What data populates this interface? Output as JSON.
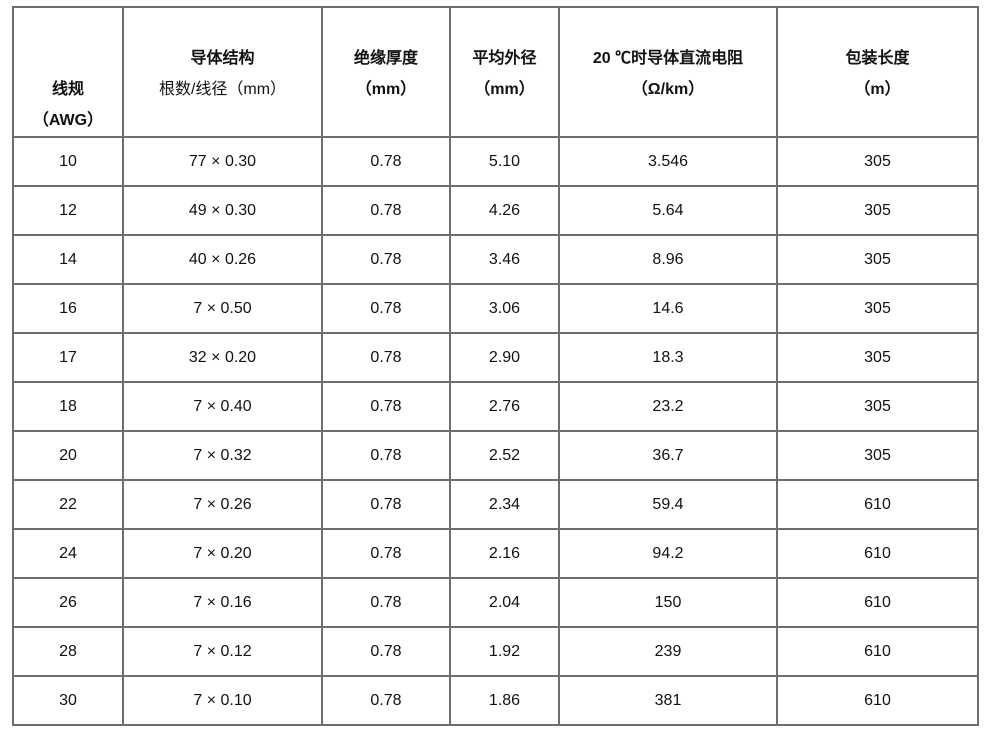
{
  "table": {
    "headers": [
      {
        "lines": [
          "线规",
          "（AWG）"
        ]
      },
      {
        "lines": [
          "导体结构",
          "根数/线径（mm）"
        ]
      },
      {
        "lines": [
          "绝缘厚度",
          "（mm）"
        ]
      },
      {
        "lines": [
          "平均外径",
          "（mm）"
        ]
      },
      {
        "lines": [
          "20 ℃时导体直流电阻",
          "（Ω/km）"
        ]
      },
      {
        "lines": [
          "包装长度",
          "（m）"
        ]
      }
    ],
    "rows": [
      [
        "10",
        "77 × 0.30",
        "0.78",
        "5.10",
        "3.546",
        "305"
      ],
      [
        "12",
        "49 × 0.30",
        "0.78",
        "4.26",
        "5.64",
        "305"
      ],
      [
        "14",
        "40 × 0.26",
        "0.78",
        "3.46",
        "8.96",
        "305"
      ],
      [
        "16",
        "7 × 0.50",
        "0.78",
        "3.06",
        "14.6",
        "305"
      ],
      [
        "17",
        "32 × 0.20",
        "0.78",
        "2.90",
        "18.3",
        "305"
      ],
      [
        "18",
        "7 × 0.40",
        "0.78",
        "2.76",
        "23.2",
        "305"
      ],
      [
        "20",
        "7 × 0.32",
        "0.78",
        "2.52",
        "36.7",
        "305"
      ],
      [
        "22",
        "7 × 0.26",
        "0.78",
        "2.34",
        "59.4",
        "610"
      ],
      [
        "24",
        "7 × 0.20",
        "0.78",
        "2.16",
        "94.2",
        "610"
      ],
      [
        "26",
        "7 × 0.16",
        "0.78",
        "2.04",
        "150",
        "610"
      ],
      [
        "28",
        "7 × 0.12",
        "0.78",
        "1.92",
        "239",
        "610"
      ],
      [
        "30",
        "7 × 0.10",
        "0.78",
        "1.86",
        "381",
        "610"
      ]
    ]
  }
}
